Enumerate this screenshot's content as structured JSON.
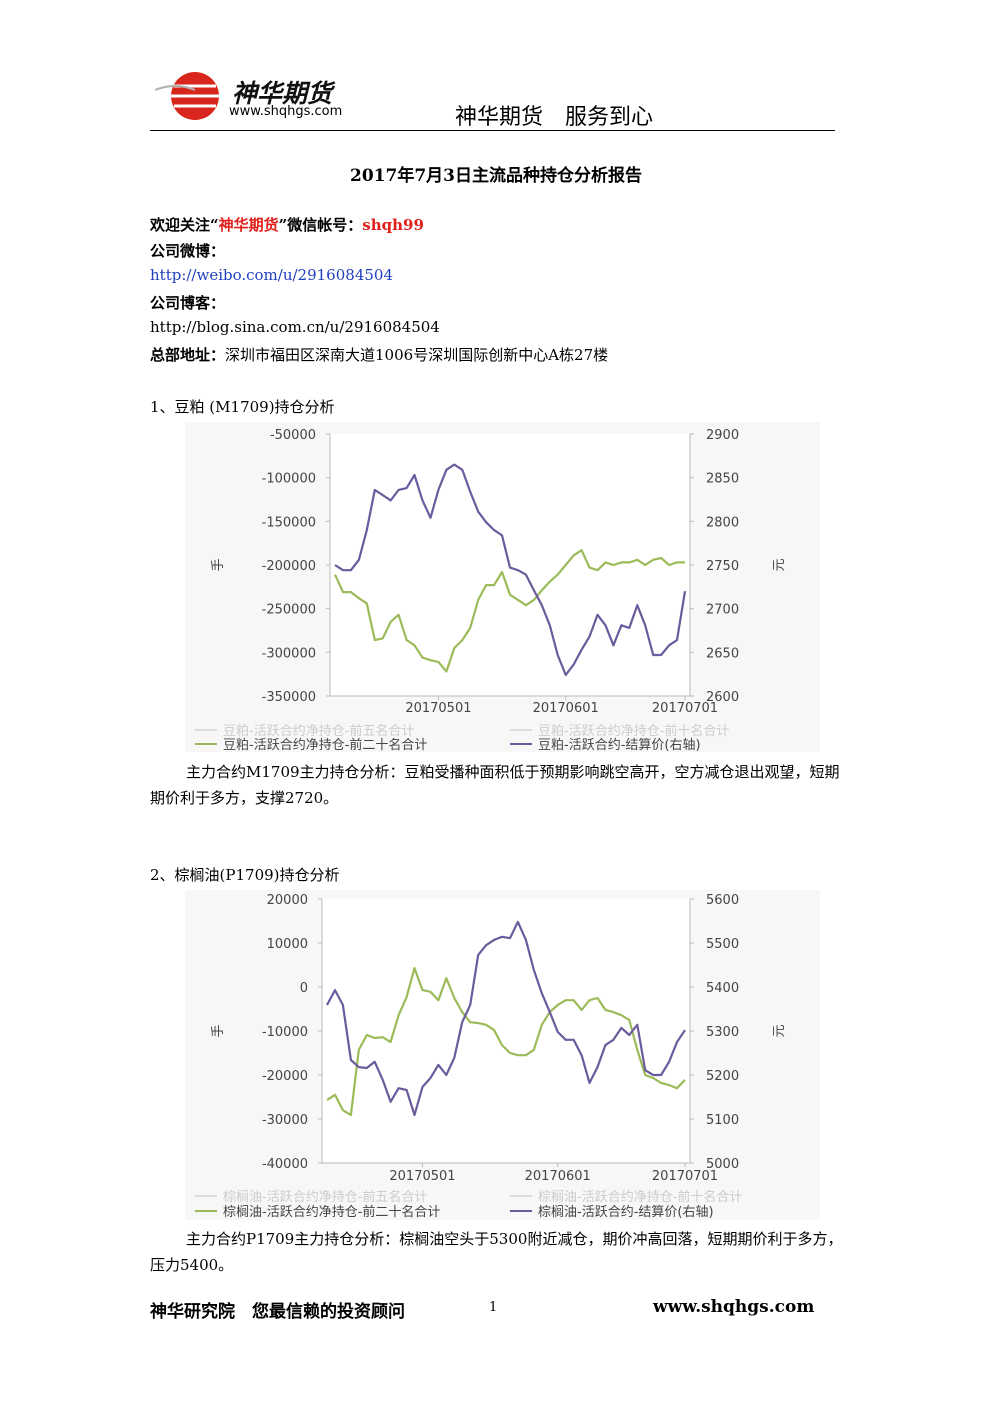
{
  "header": {
    "logo_text": "神华期货",
    "logo_url": "www.shqhgs.com",
    "slogan": "神华期货　服务到心"
  },
  "title": "2017年7月3日主流品种持仓分析报告",
  "intro": {
    "wechat": [
      "欢迎关注“",
      "神华期货",
      "”微信帐号：",
      "shqh99"
    ],
    "weibo_label": "公司微博：",
    "weibo_url": "http://weibo.com/u/2916084504",
    "blog_label": "公司博客：",
    "blog_url": "http://blog.sina.com.cn/u/2916084504",
    "address_label": "总部地址：",
    "address": "深圳市福田区深南大道1006号深圳国际创新中心A栋27楼"
  },
  "sections": [
    {
      "heading": "1、豆粕 (M1709)持仓分析",
      "analysis": "主力合约M1709主力持仓分析：豆粕受播种面积低于预期影响跳空高开，空方减仓退出观望，短期期价利于多方，支撑2720。"
    },
    {
      "heading": "2、棕榈油(P1709)持仓分析",
      "analysis": "主力合约P1709主力持仓分析：棕榈油空头于5300附近减仓，期价冲高回落，短期期价利于多方，压力5400。"
    }
  ],
  "footer": {
    "left": "神华研究院　您最信赖的投资顾问",
    "page": "1",
    "right": "www.shqhgs.com"
  },
  "chart_data": [
    {
      "type": "line",
      "y_label": "手",
      "y2_label": "元",
      "ylim": [
        -350000,
        -50000
      ],
      "yticks": [
        -50000,
        -100000,
        -150000,
        -200000,
        -250000,
        -300000,
        -350000
      ],
      "y2lim": [
        2600,
        2900
      ],
      "y2ticks": [
        2900,
        2850,
        2800,
        2750,
        2700,
        2650,
        2600
      ],
      "categories": [
        null,
        null,
        null,
        null,
        null,
        null,
        null,
        null,
        null,
        null,
        null,
        null,
        null,
        "20170501",
        null,
        null,
        null,
        null,
        null,
        null,
        null,
        null,
        null,
        null,
        null,
        null,
        null,
        null,
        null,
        "20170601",
        null,
        null,
        null,
        null,
        null,
        null,
        null,
        null,
        null,
        null,
        null,
        null,
        null,
        null,
        "20170701"
      ],
      "legend_only": [
        {
          "name": "豆粕-活跃合约净持仓-前五名合计",
          "color": "#dcdcdc"
        },
        {
          "name": "豆粕-活跃合约净持仓-前十名合计",
          "color": "#dcdcdc"
        }
      ],
      "series": [
        {
          "name": "豆粕-活跃合约净持仓-前二十名合计",
          "color": "#9bbb59",
          "values": [
            -211000,
            -231000,
            -231000,
            -238000,
            -244000,
            -286000,
            -284000,
            -265000,
            -257000,
            -286000,
            -292000,
            -306000,
            -309000,
            -311000,
            -322000,
            -295000,
            -286000,
            -272000,
            -240000,
            -223000,
            -223000,
            -208000,
            -234000,
            -240000,
            -246000,
            -240000,
            -229000,
            -219000,
            -211000,
            -200000,
            -189000,
            -183000,
            -203000,
            -206000,
            -197000,
            -200000,
            -197000,
            -197000,
            -194000,
            -200000,
            -194000,
            -192000,
            -200000,
            -197000,
            -197000
          ]
        },
        {
          "name": "豆粕-活跃合约-结算价(右轴)",
          "color": "#6b5b9c",
          "axis": "y2",
          "values": [
            2750,
            2744,
            2744,
            2756,
            2790,
            2836,
            2830,
            2824,
            2836,
            2838,
            2853,
            2824,
            2804,
            2836,
            2859,
            2865,
            2859,
            2834,
            2811,
            2799,
            2790,
            2784,
            2747,
            2744,
            2739,
            2721,
            2704,
            2681,
            2647,
            2624,
            2636,
            2653,
            2668,
            2693,
            2681,
            2658,
            2681,
            2678,
            2704,
            2681,
            2647,
            2647,
            2658,
            2664,
            2720
          ]
        }
      ]
    },
    {
      "type": "line",
      "y_label": "手",
      "y2_label": "元",
      "ylim": [
        -40000,
        20000
      ],
      "yticks": [
        20000,
        10000,
        0,
        -10000,
        -20000,
        -30000,
        -40000
      ],
      "y2lim": [
        5000,
        5600
      ],
      "y2ticks": [
        5600,
        5500,
        5400,
        5300,
        5200,
        5100,
        5000
      ],
      "categories": [
        null,
        null,
        null,
        null,
        null,
        null,
        null,
        null,
        null,
        null,
        null,
        null,
        "20170501",
        null,
        null,
        null,
        null,
        null,
        null,
        null,
        null,
        null,
        null,
        null,
        null,
        null,
        null,
        null,
        null,
        "20170601",
        null,
        null,
        null,
        null,
        null,
        null,
        null,
        null,
        null,
        null,
        null,
        null,
        null,
        null,
        null,
        "20170701"
      ],
      "legend_only": [
        {
          "name": "棕榈油-活跃合约净持仓-前五名合计",
          "color": "#dcdcdc"
        },
        {
          "name": "棕榈油-活跃合约净持仓-前十名合计",
          "color": "#dcdcdc"
        }
      ],
      "series": [
        {
          "name": "棕榈油-活跃合约净持仓-前二十名合计",
          "color": "#9bbb59",
          "values": [
            -25700,
            -24500,
            -28000,
            -29100,
            -14300,
            -10900,
            -11600,
            -11400,
            -12500,
            -6400,
            -2300,
            4300,
            -700,
            -1100,
            -3000,
            2000,
            -2500,
            -5700,
            -8000,
            -8200,
            -8600,
            -9800,
            -13200,
            -15000,
            -15500,
            -15500,
            -14300,
            -8600,
            -5700,
            -4100,
            -3000,
            -3000,
            -5200,
            -3000,
            -2500,
            -5200,
            -5700,
            -6400,
            -7500,
            -14300,
            -20000,
            -20700,
            -21800,
            -22300,
            -23000,
            -21100
          ]
        },
        {
          "name": "棕榈油-活跃合约-结算价(右轴)",
          "color": "#6b5b9c",
          "axis": "y2",
          "values": [
            5359,
            5393,
            5359,
            5234,
            5218,
            5216,
            5230,
            5189,
            5139,
            5170,
            5166,
            5109,
            5173,
            5193,
            5223,
            5200,
            5239,
            5320,
            5359,
            5473,
            5495,
            5507,
            5514,
            5511,
            5548,
            5507,
            5439,
            5386,
            5343,
            5298,
            5280,
            5280,
            5245,
            5182,
            5218,
            5268,
            5280,
            5307,
            5291,
            5314,
            5211,
            5200,
            5200,
            5230,
            5275,
            5302
          ]
        }
      ]
    }
  ]
}
